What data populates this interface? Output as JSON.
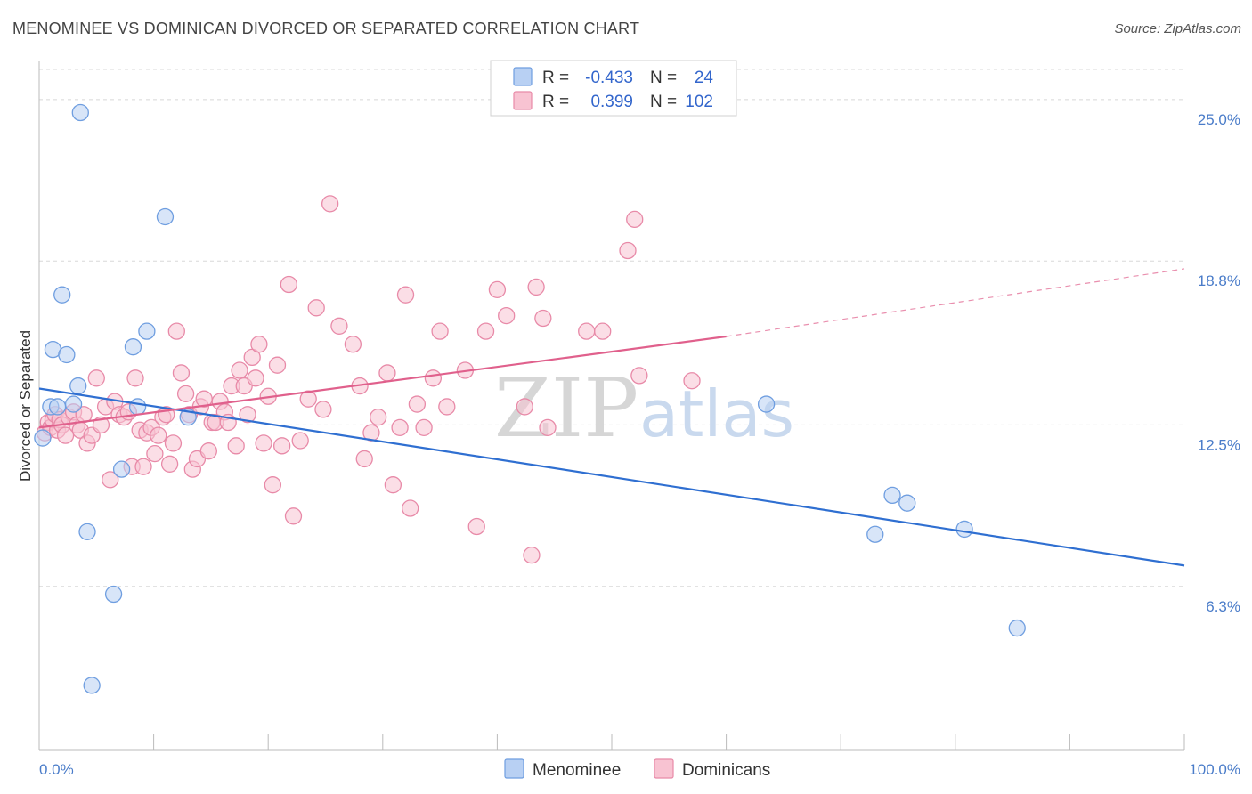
{
  "title": "MENOMINEE VS DOMINICAN DIVORCED OR SEPARATED CORRELATION CHART",
  "source": "Source: ZipAtlas.com",
  "watermark": {
    "zip": "ZIP",
    "atlas": "atlas"
  },
  "colors": {
    "menominee_fill": "#b8d0f3",
    "menominee_stroke": "#6f9ee0",
    "menominee_line": "#2f6fd1",
    "dominican_fill": "#f8c3d2",
    "dominican_stroke": "#e88aa8",
    "dominican_line": "#e0608c",
    "grid": "#d8d8d8",
    "tick_label": "#4a7cc9"
  },
  "legend": {
    "rows": [
      {
        "r_label": "R =",
        "r_value": "-0.433",
        "n_label": "N =",
        "n_value": "24"
      },
      {
        "r_label": "R =",
        "r_value": "0.399",
        "n_label": "N =",
        "n_value": "102"
      }
    ]
  },
  "bottom_legend": [
    "Menominee",
    "Dominicans"
  ],
  "chart_data": {
    "type": "scatter",
    "title": "MENOMINEE VS DOMINICAN DIVORCED OR SEPARATED CORRELATION CHART",
    "xlabel": "",
    "ylabel": "Divorced or Separated",
    "xlim": [
      0,
      100
    ],
    "ylim": [
      0,
      26.5
    ],
    "x_tick_labels": [
      "0.0%",
      "100.0%"
    ],
    "y_ticks": [
      6.3,
      12.5,
      18.8,
      25.0
    ],
    "y_tick_labels": [
      "6.3%",
      "12.5%",
      "18.8%",
      "25.0%"
    ],
    "grid": "horizontal dashed",
    "legend_position": "top-center",
    "series": [
      {
        "name": "Menominee",
        "points": [
          [
            0.3,
            12.0
          ],
          [
            1.0,
            13.2
          ],
          [
            1.2,
            15.4
          ],
          [
            1.6,
            13.2
          ],
          [
            2.0,
            17.5
          ],
          [
            2.4,
            15.2
          ],
          [
            3.0,
            13.3
          ],
          [
            3.4,
            14.0
          ],
          [
            3.6,
            24.5
          ],
          [
            4.2,
            8.4
          ],
          [
            4.6,
            2.5
          ],
          [
            6.5,
            6.0
          ],
          [
            7.2,
            10.8
          ],
          [
            8.2,
            15.5
          ],
          [
            8.6,
            13.2
          ],
          [
            9.4,
            16.1
          ],
          [
            11.0,
            20.5
          ],
          [
            13.0,
            12.8
          ],
          [
            63.5,
            13.3
          ],
          [
            73.0,
            8.3
          ],
          [
            74.5,
            9.8
          ],
          [
            75.8,
            9.5
          ],
          [
            80.8,
            8.5
          ],
          [
            85.4,
            4.7
          ]
        ],
        "trend": {
          "x": [
            0,
            100
          ],
          "y": [
            13.9,
            7.1
          ]
        }
      },
      {
        "name": "Dominicans",
        "points": [
          [
            0.5,
            12.2
          ],
          [
            0.8,
            12.6
          ],
          [
            1.0,
            12.4
          ],
          [
            1.2,
            12.7
          ],
          [
            1.4,
            12.9
          ],
          [
            1.6,
            12.3
          ],
          [
            1.8,
            12.7
          ],
          [
            2.0,
            12.5
          ],
          [
            2.3,
            12.1
          ],
          [
            2.6,
            12.8
          ],
          [
            3.0,
            13.0
          ],
          [
            3.3,
            12.5
          ],
          [
            3.6,
            12.3
          ],
          [
            3.9,
            12.9
          ],
          [
            4.2,
            11.8
          ],
          [
            4.6,
            12.1
          ],
          [
            5.0,
            14.3
          ],
          [
            5.4,
            12.5
          ],
          [
            5.8,
            13.2
          ],
          [
            6.2,
            10.4
          ],
          [
            6.6,
            13.4
          ],
          [
            7.0,
            12.9
          ],
          [
            7.4,
            12.8
          ],
          [
            7.8,
            13.0
          ],
          [
            8.1,
            10.9
          ],
          [
            8.4,
            14.3
          ],
          [
            8.8,
            12.3
          ],
          [
            9.1,
            10.9
          ],
          [
            9.4,
            12.2
          ],
          [
            9.8,
            12.4
          ],
          [
            10.1,
            11.4
          ],
          [
            10.4,
            12.1
          ],
          [
            10.8,
            12.8
          ],
          [
            11.1,
            12.9
          ],
          [
            11.4,
            11.0
          ],
          [
            11.7,
            11.8
          ],
          [
            12.0,
            16.1
          ],
          [
            12.4,
            14.5
          ],
          [
            12.8,
            13.7
          ],
          [
            13.1,
            12.9
          ],
          [
            13.4,
            10.8
          ],
          [
            13.8,
            11.2
          ],
          [
            14.1,
            13.2
          ],
          [
            14.4,
            13.5
          ],
          [
            14.8,
            11.5
          ],
          [
            15.1,
            12.6
          ],
          [
            15.4,
            12.6
          ],
          [
            15.8,
            13.4
          ],
          [
            16.2,
            13.0
          ],
          [
            16.5,
            12.6
          ],
          [
            16.8,
            14.0
          ],
          [
            17.2,
            11.7
          ],
          [
            17.5,
            14.6
          ],
          [
            17.9,
            14.0
          ],
          [
            18.2,
            12.9
          ],
          [
            18.6,
            15.1
          ],
          [
            18.9,
            14.3
          ],
          [
            19.2,
            15.6
          ],
          [
            19.6,
            11.8
          ],
          [
            20.0,
            13.6
          ],
          [
            20.4,
            10.2
          ],
          [
            20.8,
            14.8
          ],
          [
            21.2,
            11.7
          ],
          [
            21.8,
            17.9
          ],
          [
            22.2,
            9.0
          ],
          [
            22.8,
            11.9
          ],
          [
            23.5,
            13.5
          ],
          [
            24.2,
            17.0
          ],
          [
            24.8,
            13.1
          ],
          [
            25.4,
            21.0
          ],
          [
            26.2,
            16.3
          ],
          [
            27.4,
            15.6
          ],
          [
            28.0,
            14.0
          ],
          [
            28.4,
            11.2
          ],
          [
            29.0,
            12.2
          ],
          [
            29.6,
            12.8
          ],
          [
            30.4,
            14.5
          ],
          [
            30.9,
            10.2
          ],
          [
            31.5,
            12.4
          ],
          [
            32.0,
            17.5
          ],
          [
            32.4,
            9.3
          ],
          [
            33.0,
            13.3
          ],
          [
            33.6,
            12.4
          ],
          [
            34.4,
            14.3
          ],
          [
            35.0,
            16.1
          ],
          [
            35.6,
            13.2
          ],
          [
            37.2,
            14.6
          ],
          [
            38.2,
            8.6
          ],
          [
            39.0,
            16.1
          ],
          [
            40.0,
            17.7
          ],
          [
            40.8,
            16.7
          ],
          [
            42.4,
            13.2
          ],
          [
            43.0,
            7.5
          ],
          [
            43.4,
            17.8
          ],
          [
            44.0,
            16.6
          ],
          [
            44.4,
            12.4
          ],
          [
            47.8,
            16.1
          ],
          [
            49.2,
            16.1
          ],
          [
            51.4,
            19.2
          ],
          [
            52.0,
            20.4
          ],
          [
            52.4,
            14.4
          ],
          [
            57.0,
            14.2
          ]
        ],
        "trend": {
          "x": [
            0,
            60
          ],
          "y": [
            12.4,
            15.9
          ]
        },
        "trend_extension": {
          "x": [
            60,
            100
          ],
          "y": [
            15.9,
            18.5
          ]
        }
      }
    ]
  }
}
